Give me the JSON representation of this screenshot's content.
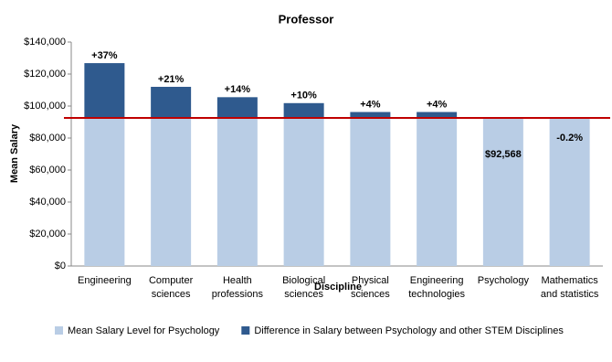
{
  "chart_data": {
    "type": "stacked_bar",
    "title": "Professor",
    "x_label": "Discipline",
    "y_label": "Mean Salary",
    "categories": [
      "Engineering",
      "Computer\nsciences",
      "Health\nprofessions",
      "Biological\nsciences",
      "Physical\nsciences",
      "Engineering\ntechnologies",
      "Psychology",
      "Mathematics\nand statistics"
    ],
    "series": [
      {
        "name": "Mean Salary Level for Psychology",
        "color": "#b9cde5",
        "values": [
          92568,
          92568,
          92568,
          92568,
          92568,
          92568,
          92568,
          92383
        ],
        "value_labels": [
          null,
          null,
          null,
          null,
          null,
          null,
          "$92,568",
          null
        ]
      },
      {
        "name": "Difference in Salary between Psychology and other STEM Disciplines",
        "color": "#2f5a8e",
        "values": [
          34250,
          19440,
          12960,
          9260,
          3700,
          3700,
          null,
          null
        ]
      }
    ],
    "percent_difference": {
      "values": [
        37,
        21,
        14,
        10,
        4,
        4,
        null,
        -0.2
      ],
      "value_labels": [
        "+37%",
        "+21%",
        "+14%",
        "+10%",
        "+4%",
        "+4%",
        null,
        "-0.2%"
      ]
    },
    "reference_line": {
      "value": 92568,
      "color": "#c00000"
    },
    "ylim": [
      0,
      140000
    ],
    "yticks": [
      {
        "value": 0,
        "label": "$0"
      },
      {
        "value": 20000,
        "label": "$20,000"
      },
      {
        "value": 40000,
        "label": "$40,000"
      },
      {
        "value": 60000,
        "label": "$60,000"
      },
      {
        "value": 80000,
        "label": "$80,000"
      },
      {
        "value": 100000,
        "label": "$100,000"
      },
      {
        "value": 120000,
        "label": "$120,000"
      },
      {
        "value": 140000,
        "label": "$140,000"
      }
    ],
    "legend": "bottom"
  }
}
